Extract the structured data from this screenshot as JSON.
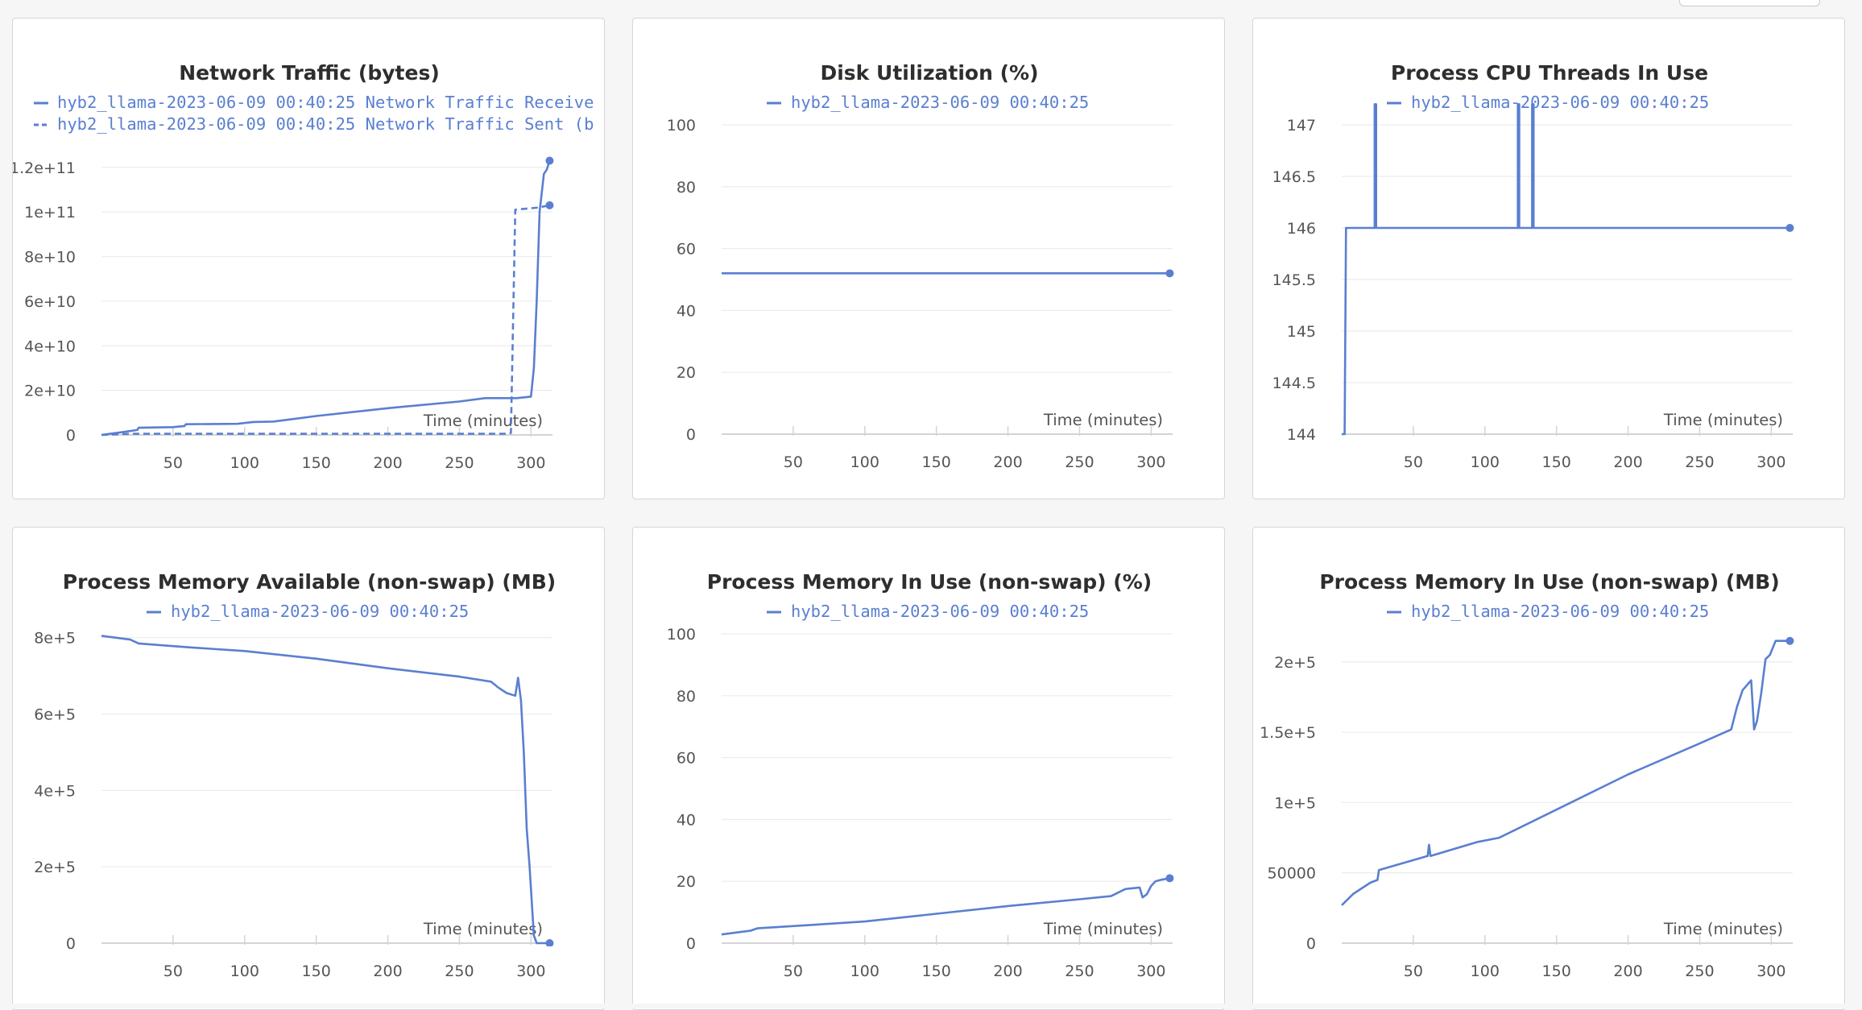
{
  "theme": {
    "series_color": "#5a7fd1",
    "grid_color": "#ececec",
    "axis_color": "#d4d4d4",
    "text_color": "#555555",
    "title_color": "#2e2e2e"
  },
  "chart_data": [
    {
      "type": "line",
      "title": "Network Traffic (bytes)",
      "xlabel": "Time (minutes)",
      "ylabel": "",
      "xlim": [
        0,
        315
      ],
      "ylim": [
        0,
        125000000000.0
      ],
      "xticks": [
        50,
        100,
        150,
        200,
        250,
        300
      ],
      "yticks": [
        0,
        20000000000.0,
        40000000000.0,
        60000000000.0,
        80000000000.0,
        100000000000.0,
        120000000000.0
      ],
      "ytick_labels": [
        "0",
        "2e+10",
        "4e+10",
        "6e+10",
        "8e+10",
        "1e+11",
        "1.2e+11"
      ],
      "series": [
        {
          "name": "hyb2_llama-2023-06-09 00:40:25 Network Traffic Receive",
          "style": "solid",
          "end_marker": true,
          "points": [
            [
              0,
              0
            ],
            [
              12,
              1000000000.0
            ],
            [
              25,
              2200000000.0
            ],
            [
              26,
              3200000000.0
            ],
            [
              50,
              3500000000.0
            ],
            [
              58,
              4000000000.0
            ],
            [
              59,
              4800000000.0
            ],
            [
              95,
              5000000000.0
            ],
            [
              106,
              5800000000.0
            ],
            [
              120,
              6000000000.0
            ],
            [
              150,
              8500000000.0
            ],
            [
              200,
              12000000000.0
            ],
            [
              250,
              15000000000.0
            ],
            [
              268,
              16500000000.0
            ],
            [
              290,
              16500000000.0
            ],
            [
              300,
              17200000000.0
            ],
            [
              302,
              30000000000.0
            ],
            [
              304,
              60000000000.0
            ],
            [
              306,
              100000000000.0
            ],
            [
              309,
              117000000000.0
            ],
            [
              311,
              119000000000.0
            ],
            [
              313,
              123000000000.0
            ]
          ]
        },
        {
          "name": "hyb2_llama-2023-06-09 00:40:25 Network Traffic Sent (b",
          "style": "dashed",
          "end_marker": true,
          "points": [
            [
              0,
              0
            ],
            [
              20,
              500000000.0
            ],
            [
              285,
              500000000.0
            ],
            [
              286,
              900000000.0
            ],
            [
              289,
              101000000000.0
            ],
            [
              305,
              102000000000.0
            ],
            [
              313,
              103000000000.0
            ]
          ]
        }
      ]
    },
    {
      "type": "line",
      "title": "Disk Utilization (%)",
      "xlabel": "Time (minutes)",
      "ylabel": "",
      "xlim": [
        0,
        315
      ],
      "ylim": [
        0,
        100
      ],
      "xticks": [
        50,
        100,
        150,
        200,
        250,
        300
      ],
      "yticks": [
        0,
        20,
        40,
        60,
        80,
        100
      ],
      "ytick_labels": [
        "0",
        "20",
        "40",
        "60",
        "80",
        "100"
      ],
      "series": [
        {
          "name": "hyb2_llama-2023-06-09 00:40:25",
          "style": "solid",
          "end_marker": true,
          "points": [
            [
              0,
              52
            ],
            [
              313,
              52
            ]
          ]
        }
      ]
    },
    {
      "type": "line",
      "title": "Process CPU Threads In Use",
      "xlabel": "Time (minutes)",
      "ylabel": "",
      "xlim": [
        0,
        315
      ],
      "ylim": [
        144,
        147
      ],
      "xticks": [
        50,
        100,
        150,
        200,
        250,
        300
      ],
      "yticks": [
        144,
        144.5,
        145,
        145.5,
        146,
        146.5,
        147
      ],
      "ytick_labels": [
        "144",
        "144.5",
        "145",
        "145.5",
        "146",
        "146.5",
        "147"
      ],
      "series": [
        {
          "name": "hyb2_llama-2023-06-09 00:40:25",
          "style": "solid",
          "end_marker": true,
          "points": [
            [
              0,
              144
            ],
            [
              2,
              144
            ],
            [
              3,
              146
            ],
            [
              23,
              146
            ],
            [
              23,
              147.2
            ],
            [
              24,
              147.2
            ],
            [
              24,
              146
            ],
            [
              123,
              146
            ],
            [
              123,
              147.2
            ],
            [
              124,
              147.2
            ],
            [
              124,
              146
            ],
            [
              133,
              146
            ],
            [
              133,
              147.2
            ],
            [
              134,
              147.2
            ],
            [
              134,
              146
            ],
            [
              313,
              146
            ]
          ]
        }
      ]
    },
    {
      "type": "line",
      "title": "Process Memory Available (non-swap) (MB)",
      "xlabel": "Time (minutes)",
      "ylabel": "",
      "xlim": [
        0,
        315
      ],
      "ylim": [
        0,
        810000.0
      ],
      "xticks": [
        50,
        100,
        150,
        200,
        250,
        300
      ],
      "yticks": [
        0,
        200000.0,
        400000.0,
        600000.0,
        800000.0
      ],
      "ytick_labels": [
        "0",
        "2e+5",
        "4e+5",
        "6e+5",
        "8e+5"
      ],
      "series": [
        {
          "name": "hyb2_llama-2023-06-09 00:40:25",
          "style": "solid",
          "end_marker": true,
          "points": [
            [
              0,
              805000.0
            ],
            [
              20,
              795000.0
            ],
            [
              26,
              785000.0
            ],
            [
              60,
              775000.0
            ],
            [
              100,
              765000.0
            ],
            [
              150,
              745000.0
            ],
            [
              200,
              720000.0
            ],
            [
              250,
              698000.0
            ],
            [
              272,
              685000.0
            ],
            [
              277,
              670000.0
            ],
            [
              283,
              655000.0
            ],
            [
              289,
              648000.0
            ],
            [
              291,
              695000.0
            ],
            [
              293,
              635000.0
            ],
            [
              295,
              500000.0
            ],
            [
              297,
              300000.0
            ],
            [
              299,
              200000.0
            ],
            [
              301,
              80000.0
            ],
            [
              302,
              20000.0
            ],
            [
              304,
              0
            ],
            [
              313,
              0
            ]
          ]
        }
      ]
    },
    {
      "type": "line",
      "title": "Process Memory In Use (non-swap) (%)",
      "xlabel": "Time (minutes)",
      "ylabel": "",
      "xlim": [
        0,
        315
      ],
      "ylim": [
        0,
        100
      ],
      "xticks": [
        50,
        100,
        150,
        200,
        250,
        300
      ],
      "yticks": [
        0,
        20,
        40,
        60,
        80,
        100
      ],
      "ytick_labels": [
        "0",
        "20",
        "40",
        "60",
        "80",
        "100"
      ],
      "series": [
        {
          "name": "hyb2_llama-2023-06-09 00:40:25",
          "style": "solid",
          "end_marker": true,
          "points": [
            [
              0,
              2.8
            ],
            [
              20,
              4.0
            ],
            [
              25,
              4.8
            ],
            [
              60,
              5.8
            ],
            [
              100,
              7.0
            ],
            [
              150,
              9.5
            ],
            [
              200,
              12.0
            ],
            [
              250,
              14.2
            ],
            [
              272,
              15.2
            ],
            [
              282,
              17.5
            ],
            [
              292,
              18.0
            ],
            [
              294,
              14.8
            ],
            [
              297,
              15.8
            ],
            [
              300,
              18.5
            ],
            [
              303,
              20.0
            ],
            [
              307,
              20.5
            ],
            [
              313,
              21.0
            ]
          ]
        }
      ]
    },
    {
      "type": "line",
      "title": "Process Memory In Use (non-swap) (MB)",
      "xlabel": "Time (minutes)",
      "ylabel": "",
      "xlim": [
        0,
        315
      ],
      "ylim": [
        0,
        220000.0
      ],
      "xticks": [
        50,
        100,
        150,
        200,
        250,
        300
      ],
      "yticks": [
        0,
        50000,
        100000.0,
        150000.0,
        200000.0
      ],
      "ytick_labels": [
        "0",
        "50000",
        "1e+5",
        "1.5e+5",
        "2e+5"
      ],
      "series": [
        {
          "name": "hyb2_llama-2023-06-09 00:40:25",
          "style": "solid",
          "end_marker": true,
          "points": [
            [
              0,
              27000.0
            ],
            [
              8,
              35000.0
            ],
            [
              20,
              43000.0
            ],
            [
              25,
              45000.0
            ],
            [
              26,
              52000.0
            ],
            [
              60,
              62000.0
            ],
            [
              61,
              70000.0
            ],
            [
              62,
              62000.0
            ],
            [
              95,
              72000.0
            ],
            [
              110,
              75000.0
            ],
            [
              150,
              95000.0
            ],
            [
              200,
              120000.0
            ],
            [
              250,
              142000.0
            ],
            [
              272,
              152000.0
            ],
            [
              276,
              168000.0
            ],
            [
              280,
              180000.0
            ],
            [
              286,
              187000.0
            ],
            [
              288,
              152000.0
            ],
            [
              290,
              158000.0
            ],
            [
              293,
              178000.0
            ],
            [
              296,
              202000.0
            ],
            [
              299,
              205000.0
            ],
            [
              303,
              215000.0
            ],
            [
              307,
              215000.0
            ],
            [
              313,
              215000.0
            ]
          ]
        }
      ]
    }
  ]
}
